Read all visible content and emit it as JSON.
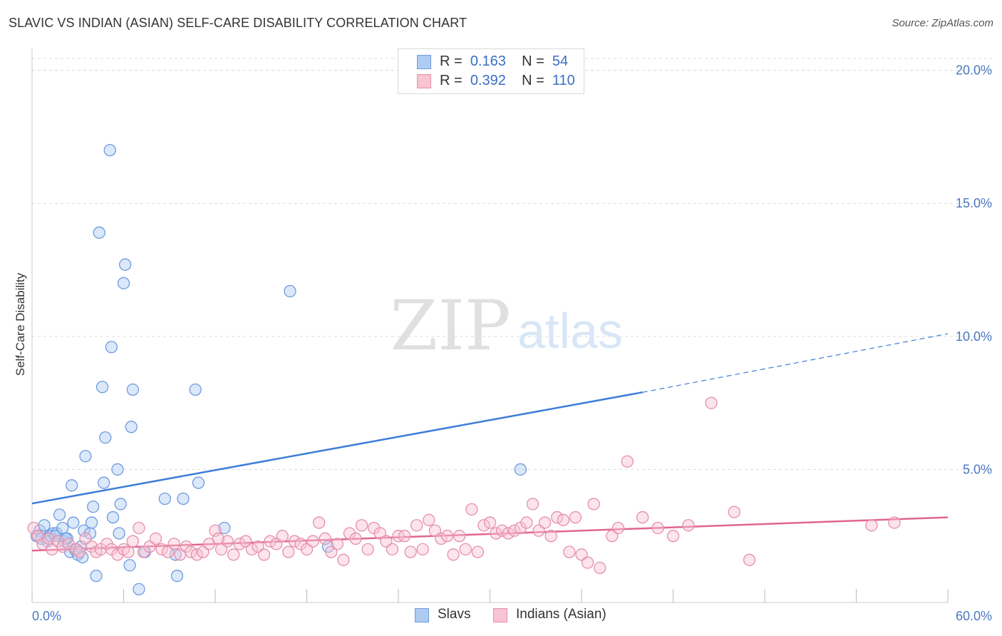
{
  "title": "SLAVIC VS INDIAN (ASIAN) SELF-CARE DISABILITY CORRELATION CHART",
  "source": "Source: ZipAtlas.com",
  "watermark": {
    "zip": "ZIP",
    "atlas": "atlas"
  },
  "legend": {
    "r_label": "R =",
    "n_label": "N =",
    "series": [
      {
        "name": "Slavs",
        "r": "0.163",
        "n": "54",
        "fill": "#aecbf2",
        "stroke": "#6f9be0"
      },
      {
        "name": "Indians (Asian)",
        "r": "0.392",
        "n": "110",
        "fill": "#f8c3d2",
        "stroke": "#e58fab"
      }
    ]
  },
  "chart_data": {
    "type": "scatter",
    "title": "SLAVIC VS INDIAN (ASIAN) SELF-CARE DISABILITY CORRELATION CHART",
    "xlabel": "",
    "ylabel": "Self-Care Disability",
    "xlim": [
      0,
      60
    ],
    "ylim": [
      0,
      20.5
    ],
    "x_tick_labels": [
      "0.0%",
      "60.0%"
    ],
    "y_ticks": [
      5,
      10,
      15,
      20
    ],
    "y_tick_labels": [
      "5.0%",
      "10.0%",
      "15.0%",
      "20.0%"
    ],
    "grid": "horizontal dashed",
    "legend_position": "top-center",
    "series": [
      {
        "name": "Slavs",
        "color": "#6f9be0",
        "fill": "#aecbf2",
        "trend": {
          "x0": 0,
          "y0": 3.72,
          "x1": 40,
          "y1": 7.9,
          "dashed_to_x": 60,
          "dashed_to_y": 10.1,
          "color": "#3d7dd8"
        },
        "points": [
          [
            0.3,
            2.5
          ],
          [
            0.5,
            2.7
          ],
          [
            0.6,
            2.4
          ],
          [
            0.8,
            2.9
          ],
          [
            1.0,
            2.3
          ],
          [
            1.2,
            2.5
          ],
          [
            1.4,
            2.6
          ],
          [
            1.6,
            2.6
          ],
          [
            1.8,
            3.3
          ],
          [
            2.0,
            2.8
          ],
          [
            2.1,
            2.3
          ],
          [
            2.3,
            2.4
          ],
          [
            2.5,
            1.9
          ],
          [
            2.6,
            4.4
          ],
          [
            2.7,
            3.0
          ],
          [
            2.8,
            2.0
          ],
          [
            3.0,
            1.8
          ],
          [
            3.2,
            2.1
          ],
          [
            3.3,
            1.7
          ],
          [
            3.4,
            2.7
          ],
          [
            3.5,
            5.5
          ],
          [
            3.8,
            2.6
          ],
          [
            3.9,
            3.0
          ],
          [
            4.0,
            3.6
          ],
          [
            4.2,
            1.0
          ],
          [
            4.4,
            13.9
          ],
          [
            4.6,
            8.1
          ],
          [
            4.7,
            4.5
          ],
          [
            4.8,
            6.2
          ],
          [
            5.1,
            17.0
          ],
          [
            5.2,
            9.6
          ],
          [
            5.3,
            3.2
          ],
          [
            5.6,
            5.0
          ],
          [
            5.7,
            2.6
          ],
          [
            5.8,
            3.7
          ],
          [
            6.0,
            12.0
          ],
          [
            6.1,
            12.7
          ],
          [
            6.4,
            1.4
          ],
          [
            6.5,
            6.6
          ],
          [
            6.6,
            8.0
          ],
          [
            7.0,
            0.5
          ],
          [
            7.4,
            1.9
          ],
          [
            8.7,
            3.9
          ],
          [
            9.4,
            1.8
          ],
          [
            9.5,
            1.0
          ],
          [
            9.9,
            3.9
          ],
          [
            10.7,
            8.0
          ],
          [
            10.9,
            4.5
          ],
          [
            12.6,
            2.8
          ],
          [
            16.9,
            11.7
          ],
          [
            19.4,
            2.1
          ],
          [
            32.0,
            5.0
          ],
          [
            1.5,
            2.5
          ],
          [
            2.2,
            2.4
          ]
        ]
      },
      {
        "name": "Indians (Asian)",
        "color": "#e58fab",
        "fill": "#f8c3d2",
        "trend": {
          "x0": 0,
          "y0": 1.95,
          "x1": 60,
          "y1": 3.2,
          "color": "#e0668f"
        },
        "points": [
          [
            0.1,
            2.8
          ],
          [
            0.4,
            2.5
          ],
          [
            0.7,
            2.2
          ],
          [
            1.1,
            2.4
          ],
          [
            1.3,
            2.0
          ],
          [
            1.7,
            2.3
          ],
          [
            2.0,
            2.1
          ],
          [
            2.4,
            2.2
          ],
          [
            2.9,
            2.0
          ],
          [
            3.1,
            1.9
          ],
          [
            3.5,
            2.4
          ],
          [
            3.9,
            2.1
          ],
          [
            4.2,
            1.9
          ],
          [
            4.5,
            2.0
          ],
          [
            4.9,
            2.2
          ],
          [
            5.2,
            2.0
          ],
          [
            5.6,
            1.8
          ],
          [
            6.0,
            2.0
          ],
          [
            6.3,
            1.9
          ],
          [
            6.6,
            2.3
          ],
          [
            7.0,
            2.8
          ],
          [
            7.3,
            1.9
          ],
          [
            7.7,
            2.1
          ],
          [
            8.1,
            2.4
          ],
          [
            8.5,
            2.0
          ],
          [
            8.9,
            1.9
          ],
          [
            9.3,
            2.2
          ],
          [
            9.7,
            1.8
          ],
          [
            10.1,
            2.1
          ],
          [
            10.4,
            1.9
          ],
          [
            10.8,
            1.8
          ],
          [
            11.2,
            1.9
          ],
          [
            11.6,
            2.2
          ],
          [
            12.0,
            2.7
          ],
          [
            12.4,
            2.0
          ],
          [
            12.8,
            2.3
          ],
          [
            13.2,
            1.8
          ],
          [
            13.6,
            2.2
          ],
          [
            14.0,
            2.3
          ],
          [
            14.4,
            2.0
          ],
          [
            14.8,
            2.1
          ],
          [
            15.2,
            1.8
          ],
          [
            15.6,
            2.3
          ],
          [
            16.0,
            2.2
          ],
          [
            16.4,
            2.5
          ],
          [
            16.8,
            1.9
          ],
          [
            17.2,
            2.3
          ],
          [
            17.6,
            2.2
          ],
          [
            18.0,
            2.0
          ],
          [
            18.4,
            2.3
          ],
          [
            18.8,
            3.0
          ],
          [
            19.2,
            2.4
          ],
          [
            19.6,
            1.9
          ],
          [
            20.0,
            2.2
          ],
          [
            20.4,
            1.6
          ],
          [
            20.8,
            2.6
          ],
          [
            21.2,
            2.4
          ],
          [
            21.6,
            2.9
          ],
          [
            22.0,
            2.0
          ],
          [
            22.4,
            2.8
          ],
          [
            22.8,
            2.6
          ],
          [
            23.2,
            2.3
          ],
          [
            23.6,
            2.0
          ],
          [
            24.0,
            2.5
          ],
          [
            24.4,
            2.5
          ],
          [
            24.8,
            1.9
          ],
          [
            25.2,
            2.9
          ],
          [
            25.6,
            2.0
          ],
          [
            26.0,
            3.1
          ],
          [
            26.4,
            2.7
          ],
          [
            26.8,
            2.4
          ],
          [
            27.2,
            2.5
          ],
          [
            27.6,
            1.8
          ],
          [
            28.0,
            2.5
          ],
          [
            28.4,
            2.0
          ],
          [
            28.8,
            3.5
          ],
          [
            29.2,
            1.9
          ],
          [
            29.6,
            2.9
          ],
          [
            30.0,
            3.0
          ],
          [
            30.4,
            2.6
          ],
          [
            30.8,
            2.7
          ],
          [
            31.2,
            2.6
          ],
          [
            31.6,
            2.7
          ],
          [
            32.0,
            2.8
          ],
          [
            32.4,
            3.0
          ],
          [
            32.8,
            3.7
          ],
          [
            33.2,
            2.7
          ],
          [
            33.6,
            3.0
          ],
          [
            34.0,
            2.5
          ],
          [
            34.4,
            3.2
          ],
          [
            34.8,
            3.1
          ],
          [
            35.2,
            1.9
          ],
          [
            35.6,
            3.2
          ],
          [
            36.0,
            1.8
          ],
          [
            36.4,
            1.5
          ],
          [
            36.8,
            3.7
          ],
          [
            37.2,
            1.3
          ],
          [
            38.0,
            2.5
          ],
          [
            38.4,
            2.8
          ],
          [
            39.0,
            5.3
          ],
          [
            40.0,
            3.2
          ],
          [
            41.0,
            2.8
          ],
          [
            42.0,
            2.5
          ],
          [
            43.0,
            2.9
          ],
          [
            44.5,
            7.5
          ],
          [
            46.0,
            3.4
          ],
          [
            47.0,
            1.6
          ],
          [
            55.0,
            2.9
          ],
          [
            56.5,
            3.0
          ],
          [
            12.2,
            2.4
          ]
        ]
      }
    ]
  }
}
